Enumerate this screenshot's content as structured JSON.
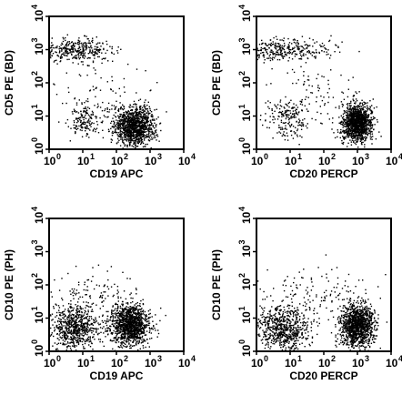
{
  "chart_data": [
    {
      "type": "scatter",
      "xlabel": "CD19 APC",
      "ylabel": "CD5 PE (BD)",
      "xscale": "log",
      "yscale": "log",
      "xlim": [
        1,
        10000
      ],
      "ylim": [
        1,
        10000
      ],
      "tick_values": [
        1,
        10,
        100,
        1000,
        10000
      ],
      "grid": false,
      "populations": [
        {
          "center": [
            7,
            950
          ],
          "spread": [
            0.55,
            0.17
          ],
          "count": 350
        },
        {
          "center": [
            350,
            5
          ],
          "spread": [
            0.3,
            0.3
          ],
          "count": 1200
        },
        {
          "center": [
            11,
            7
          ],
          "spread": [
            0.22,
            0.22
          ],
          "count": 150
        },
        {
          "center": [
            30,
            40
          ],
          "spread": [
            0.7,
            0.5
          ],
          "count": 90
        }
      ]
    },
    {
      "type": "scatter",
      "xlabel": "CD20 PERCP",
      "ylabel": "CD5 PE (BD)",
      "xscale": "log",
      "yscale": "log",
      "xlim": [
        1,
        10000
      ],
      "ylim": [
        1,
        10000
      ],
      "tick_values": [
        1,
        10,
        100,
        1000,
        10000
      ],
      "grid": false,
      "populations": [
        {
          "center": [
            5,
            1000
          ],
          "spread": [
            0.75,
            0.17
          ],
          "count": 380
        },
        {
          "center": [
            1000,
            6
          ],
          "spread": [
            0.22,
            0.28
          ],
          "count": 1200
        },
        {
          "center": [
            8,
            9
          ],
          "spread": [
            0.3,
            0.28
          ],
          "count": 180
        },
        {
          "center": [
            40,
            40
          ],
          "spread": [
            0.6,
            0.55
          ],
          "count": 100
        }
      ]
    },
    {
      "type": "scatter",
      "xlabel": "CD19 APC",
      "ylabel": "CD10 PE (PH)",
      "xscale": "log",
      "yscale": "log",
      "xlim": [
        1,
        10000
      ],
      "ylim": [
        1,
        10000
      ],
      "tick_values": [
        1,
        10,
        100,
        1000,
        10000
      ],
      "grid": false,
      "populations": [
        {
          "center": [
            6,
            5
          ],
          "spread": [
            0.35,
            0.35
          ],
          "count": 700
        },
        {
          "center": [
            250,
            6
          ],
          "spread": [
            0.3,
            0.32
          ],
          "count": 1200
        },
        {
          "center": [
            15,
            45
          ],
          "spread": [
            0.6,
            0.4
          ],
          "count": 120
        }
      ]
    },
    {
      "type": "scatter",
      "xlabel": "CD20 PERCP",
      "ylabel": "CD10 PE (PH)",
      "xscale": "log",
      "yscale": "log",
      "xlim": [
        1,
        10000
      ],
      "ylim": [
        1,
        10000
      ],
      "tick_values": [
        1,
        10,
        100,
        1000,
        10000
      ],
      "grid": false,
      "populations": [
        {
          "center": [
            6,
            5
          ],
          "spread": [
            0.38,
            0.35
          ],
          "count": 700
        },
        {
          "center": [
            1000,
            6
          ],
          "spread": [
            0.25,
            0.32
          ],
          "count": 1200
        },
        {
          "center": [
            60,
            40
          ],
          "spread": [
            0.8,
            0.45
          ],
          "count": 150
        }
      ]
    }
  ]
}
